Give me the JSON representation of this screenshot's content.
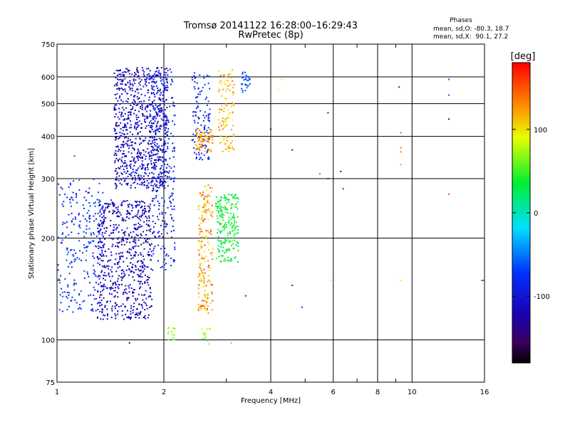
{
  "chart_data": {
    "type": "scatter",
    "title": "Tromsø 20141122 16:28:00–16:29:43",
    "subtitle": "RwPretec (8p)",
    "xlabel": "Frequency [MHz]",
    "ylabel": "Stationary phase Virtual Height [km]",
    "x_scale": "log",
    "y_scale": "log",
    "xlim": [
      1,
      16
    ],
    "ylim": [
      75,
      750
    ],
    "x_ticks": [
      1,
      2,
      4,
      6,
      8,
      10,
      16
    ],
    "x_tick_labels": [
      "1",
      "2",
      "4",
      "6",
      "8",
      "10",
      "16"
    ],
    "x_minor_ticks": [
      3,
      5,
      7,
      9
    ],
    "y_ticks": [
      75,
      100,
      200,
      300,
      400,
      500,
      600,
      750
    ],
    "y_tick_labels": [
      "75",
      "100",
      "200",
      "300",
      "400",
      "500",
      "600",
      "750"
    ],
    "y_minor_ticks": [
      150
    ],
    "grid": true,
    "stats": {
      "heading": "Phases",
      "line_o": "mean, sd,O: -80.3, 18.7",
      "line_x": "mean, sd,X:  90.1, 27.2"
    },
    "colorbar": {
      "label": "[deg]",
      "range": [
        -180,
        180
      ],
      "ticks": [
        100,
        0,
        -100
      ],
      "tick_labels": [
        "100",
        "0",
        "-100"
      ],
      "colormap": "rainbow"
    },
    "clusters": [
      {
        "x": [
          1.0,
          1.35
        ],
        "y": [
          120,
          300
        ],
        "n": 260,
        "phase": [
          -95,
          -60
        ]
      },
      {
        "x": [
          1.3,
          1.85
        ],
        "y": [
          115,
          260
        ],
        "n": 650,
        "phase": [
          -140,
          -90
        ]
      },
      {
        "x": [
          1.45,
          2.05
        ],
        "y": [
          280,
          640
        ],
        "n": 800,
        "phase": [
          -135,
          -90
        ]
      },
      {
        "x": [
          1.85,
          2.15
        ],
        "y": [
          160,
          640
        ],
        "n": 280,
        "phase": [
          -105,
          -70
        ]
      },
      {
        "x": [
          2.4,
          2.7
        ],
        "y": [
          340,
          620
        ],
        "n": 120,
        "phase": [
          -95,
          -65
        ]
      },
      {
        "x": [
          2.45,
          2.75
        ],
        "y": [
          360,
          420
        ],
        "n": 70,
        "phase": [
          100,
          150
        ]
      },
      {
        "x": [
          2.5,
          2.75
        ],
        "y": [
          120,
          290
        ],
        "n": 190,
        "phase": [
          85,
          160
        ]
      },
      {
        "x": [
          2.8,
          3.25
        ],
        "y": [
          170,
          270
        ],
        "n": 220,
        "phase": [
          15,
          55
        ]
      },
      {
        "x": [
          2.85,
          3.15
        ],
        "y": [
          360,
          630
        ],
        "n": 110,
        "phase": [
          85,
          140
        ]
      },
      {
        "x": [
          3.3,
          3.5
        ],
        "y": [
          540,
          620
        ],
        "n": 30,
        "phase": [
          -75,
          -55
        ]
      },
      {
        "x": [
          2.05,
          2.15
        ],
        "y": [
          100,
          110
        ],
        "n": 14,
        "phase": [
          60,
          80
        ]
      },
      {
        "x": [
          2.55,
          2.7
        ],
        "y": [
          97,
          108
        ],
        "n": 14,
        "phase": [
          60,
          80
        ]
      }
    ],
    "points": [
      {
        "x": 4.0,
        "y": 420,
        "phase": -160
      },
      {
        "x": 4.3,
        "y": 590,
        "phase": 95
      },
      {
        "x": 4.2,
        "y": 550,
        "phase": 90
      },
      {
        "x": 4.6,
        "y": 365,
        "phase": -100
      },
      {
        "x": 4.6,
        "y": 145,
        "phase": -100
      },
      {
        "x": 4.9,
        "y": 125,
        "phase": -70
      },
      {
        "x": 5.5,
        "y": 310,
        "phase": 150
      },
      {
        "x": 5.8,
        "y": 470,
        "phase": -110
      },
      {
        "x": 5.8,
        "y": 300,
        "phase": -90
      },
      {
        "x": 5.9,
        "y": 150,
        "phase": 90
      },
      {
        "x": 6.3,
        "y": 315,
        "phase": -150
      },
      {
        "x": 6.4,
        "y": 280,
        "phase": -70
      },
      {
        "x": 9.3,
        "y": 410,
        "phase": 150
      },
      {
        "x": 9.3,
        "y": 370,
        "phase": 140
      },
      {
        "x": 9.3,
        "y": 360,
        "phase": 140
      },
      {
        "x": 9.3,
        "y": 330,
        "phase": 120
      },
      {
        "x": 9.2,
        "y": 560,
        "phase": -100
      },
      {
        "x": 9.3,
        "y": 150,
        "phase": 90
      },
      {
        "x": 12.7,
        "y": 590,
        "phase": -60
      },
      {
        "x": 12.7,
        "y": 530,
        "phase": -60
      },
      {
        "x": 12.7,
        "y": 450,
        "phase": -130
      },
      {
        "x": 12.7,
        "y": 270,
        "phase": 150
      },
      {
        "x": 1.12,
        "y": 350,
        "phase": -60
      },
      {
        "x": 1.6,
        "y": 98,
        "phase": -130
      },
      {
        "x": 3.1,
        "y": 98,
        "phase": 120
      },
      {
        "x": 3.4,
        "y": 135,
        "phase": -80
      }
    ]
  }
}
